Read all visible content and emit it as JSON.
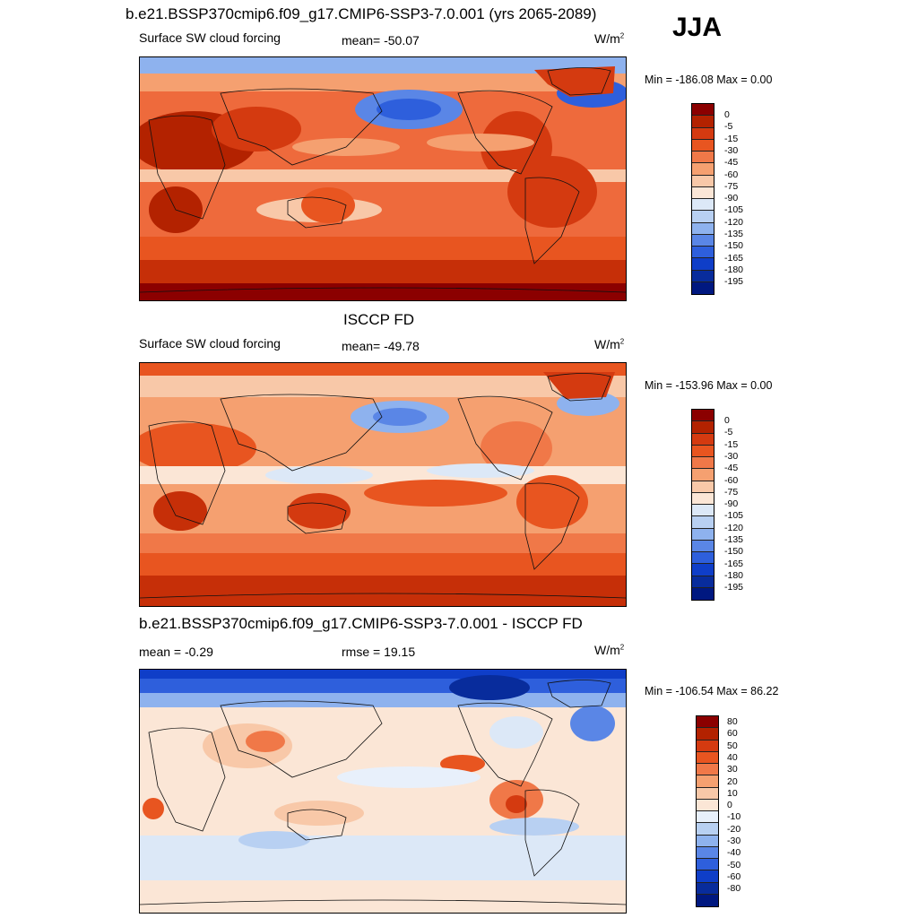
{
  "season": "JJA",
  "panels": [
    {
      "id": "model",
      "title": "b.e21.BSSP370cmip6.f09_g17.CMIP6-SSP3-7.0.001 (yrs 2065-2089)",
      "left_label": "Surface SW cloud forcing",
      "stat_label": "mean= -50.07",
      "units": "W/m",
      "units_sup": "2",
      "minmax": "Min = -186.08 Max =   0.00",
      "colorbar": {
        "labels": [
          "0",
          "-5",
          "-15",
          "-30",
          "-45",
          "-60",
          "-75",
          "-90",
          "-105",
          "-120",
          "-135",
          "-150",
          "-165",
          "-180",
          "-195"
        ],
        "colors": [
          "#8b0000",
          "#b32200",
          "#d43a10",
          "#e85520",
          "#f07848",
          "#f5a070",
          "#f8c8a8",
          "#fbe6d6",
          "#dce8f7",
          "#b8d0f2",
          "#8eb2ee",
          "#5a86e6",
          "#2e5fdc",
          "#0f3ec8",
          "#082c9c",
          "#001880"
        ]
      }
    },
    {
      "id": "obs",
      "title": "ISCCP FD",
      "left_label": "Surface SW cloud forcing",
      "stat_label": "mean= -49.78",
      "units": "W/m",
      "units_sup": "2",
      "minmax": "Min = -153.96 Max =   0.00",
      "colorbar": {
        "labels": [
          "0",
          "-5",
          "-15",
          "-30",
          "-45",
          "-60",
          "-75",
          "-90",
          "-105",
          "-120",
          "-135",
          "-150",
          "-165",
          "-180",
          "-195"
        ],
        "colors": [
          "#8b0000",
          "#b32200",
          "#d43a10",
          "#e85520",
          "#f07848",
          "#f5a070",
          "#f8c8a8",
          "#fbe6d6",
          "#dce8f7",
          "#b8d0f2",
          "#8eb2ee",
          "#5a86e6",
          "#2e5fdc",
          "#0f3ec8",
          "#082c9c",
          "#001880"
        ]
      }
    },
    {
      "id": "diff",
      "title": "b.e21.BSSP370cmip6.f09_g17.CMIP6-SSP3-7.0.001 - ISCCP FD",
      "left_label": "mean =  -0.29",
      "stat_label": "rmse =  19.15",
      "units": "W/m",
      "units_sup": "2",
      "minmax": "Min = -106.54 Max =  86.22",
      "colorbar": {
        "labels": [
          "80",
          "60",
          "50",
          "40",
          "30",
          "20",
          "10",
          "0",
          "-10",
          "-20",
          "-30",
          "-40",
          "-50",
          "-60",
          "-80"
        ],
        "colors": [
          "#8b0000",
          "#b32200",
          "#d43a10",
          "#e85520",
          "#f07848",
          "#f5a070",
          "#f8c8a8",
          "#fbe6d6",
          "#e8f0fb",
          "#b8d0f2",
          "#8eb2ee",
          "#5a86e6",
          "#2e5fdc",
          "#0f3ec8",
          "#082c9c",
          "#001880"
        ]
      }
    }
  ]
}
